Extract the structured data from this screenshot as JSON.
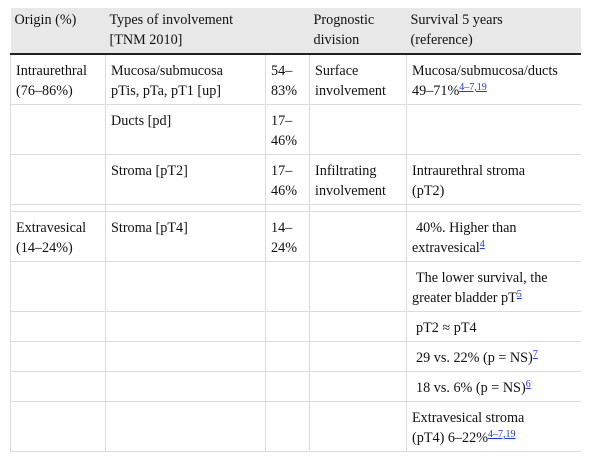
{
  "headers": {
    "origin": "Origin (%)",
    "types_line1": "Types of involvement",
    "types_line2": "[TNM 2010]",
    "prognostic_line1": "Prognostic",
    "prognostic_line2": "division",
    "survival_line1": "Survival 5 years",
    "survival_line2": "(reference)"
  },
  "rows": {
    "r1": {
      "origin_line1": "Intraurethral",
      "origin_line2": "(76–86%)",
      "type_line1": "Mucosa/submucosa",
      "type_line2": "pTis, pTa, pT1 [up]",
      "pct_line1": "54–",
      "pct_line2": "83%",
      "prog_line1": "Surface",
      "prog_line2": "involvement",
      "surv_line1": "Mucosa/submucosa/ducts",
      "surv_line2": "49–71%",
      "surv_ref": "4–7,19"
    },
    "r2": {
      "type": "Ducts [pd]",
      "pct_line1": "17–",
      "pct_line2": "46%"
    },
    "r3": {
      "type": "Stroma [pT2]",
      "pct_line1": "17–",
      "pct_line2": "46%",
      "prog_line1": "Infiltrating",
      "prog_line2": "involvement",
      "surv_line1": "Intraurethral stroma",
      "surv_line2": "(pT2)"
    },
    "r4": {
      "origin_line1": "Extravesical",
      "origin_line2": "(14–24%)",
      "type": "Stroma [pT4]",
      "pct_line1": "14–",
      "pct_line2": "24%",
      "surv_line1": "40%. Higher than",
      "surv_line2": "extravesical",
      "surv_ref": "4"
    },
    "r5": {
      "surv_line1": "The lower survival, the",
      "surv_line2": "greater bladder pT",
      "surv_ref": "5"
    },
    "r6": {
      "surv": "pT2 ≈ pT4"
    },
    "r7": {
      "surv": "29 vs. 22% (p = NS)",
      "surv_ref": "7"
    },
    "r8": {
      "surv": "18 vs. 6% (p = NS)",
      "surv_ref": "6"
    },
    "r9": {
      "surv_line1": "Extravesical stroma",
      "surv_line2": "(pT4) 6–22%",
      "surv_ref": "4–7,19"
    }
  }
}
